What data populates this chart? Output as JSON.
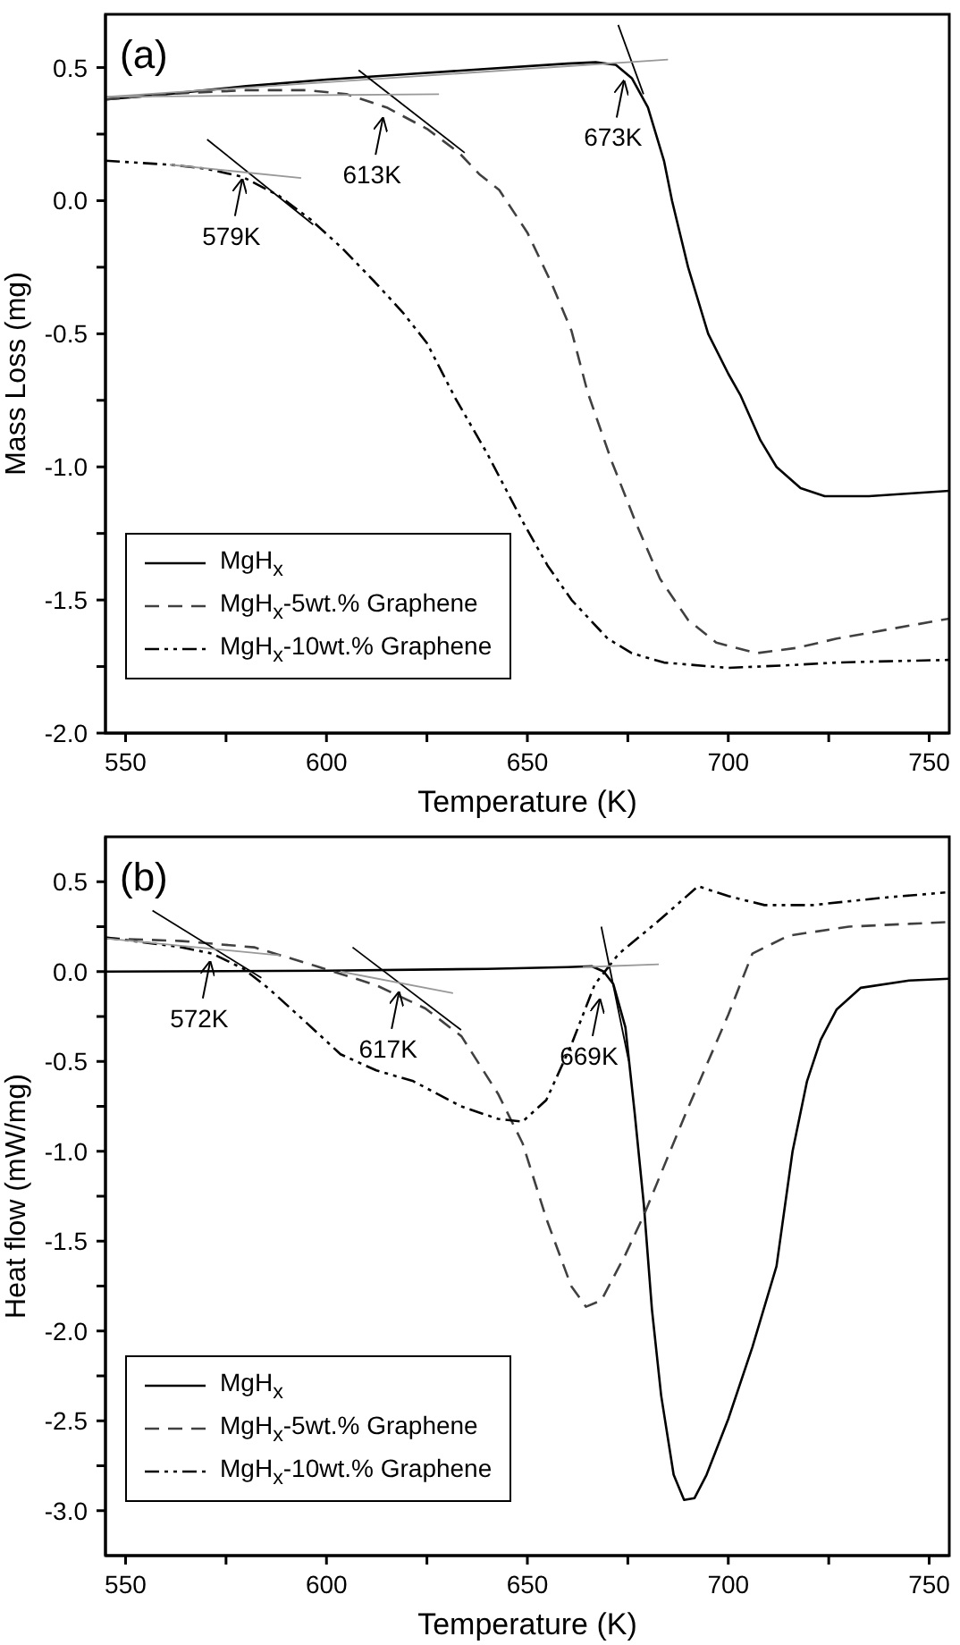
{
  "chart_data": [
    {
      "type": "line",
      "xlabel": "Temperature (K)",
      "ylabel": "Mass Loss (mg)",
      "xlim": [
        545,
        755
      ],
      "ylim": [
        -2.0,
        0.7
      ],
      "xticks": [
        550,
        {
          "value": 575,
          "label": null
        },
        600,
        {
          "value": 625,
          "label": null
        },
        650,
        {
          "value": 675,
          "label": null
        },
        700,
        {
          "value": 725,
          "label": null
        },
        750
      ],
      "yticks": [
        {
          "value": -2.0,
          "label": "-2.0"
        },
        {
          "value": -1.75,
          "label": null
        },
        -1.5,
        {
          "value": -1.25,
          "label": null
        },
        {
          "value": -1.0,
          "label": "-1.0"
        },
        {
          "value": -0.75,
          "label": null
        },
        -0.5,
        {
          "value": -0.25,
          "label": null
        },
        {
          "value": 0,
          "label": "0.0"
        },
        {
          "value": 0.25,
          "label": null
        },
        0.5
      ],
      "legend": "bottom left",
      "marker": "none",
      "grid": false,
      "annotations": [
        "(a)",
        {
          "text": "579K",
          "x": 579,
          "y": 0.09
        },
        {
          "text": "613K",
          "x": 614,
          "y": 0.32
        },
        {
          "text": "673K",
          "x": 674,
          "y": 0.46
        }
      ],
      "series": [
        {
          "name": "MgH$_{x}$",
          "color": "#000000",
          "line_style": "solid",
          "x": [
            545,
            560,
            580,
            600,
            620,
            640,
            660,
            667,
            672,
            676,
            680,
            684,
            686,
            690,
            695,
            700,
            703,
            708,
            712,
            718,
            724,
            735,
            745,
            755
          ],
          "values": [
            0.38,
            0.4,
            0.43,
            0.455,
            0.475,
            0.495,
            0.515,
            0.52,
            0.51,
            0.46,
            0.35,
            0.15,
            0.0,
            -0.25,
            -0.5,
            -0.65,
            -0.73,
            -0.9,
            -1.0,
            -1.08,
            -1.11,
            -1.11,
            -1.1,
            -1.09
          ]
        },
        {
          "name": "MgH$_{x}$-5wt.% Graphene",
          "color": "#404040",
          "line_style": "dashed",
          "x": [
            545,
            560,
            580,
            595,
            605,
            615,
            625,
            633,
            638,
            643,
            650,
            656,
            661,
            665,
            671,
            677,
            683,
            690,
            697,
            707,
            717,
            727,
            740,
            755
          ],
          "values": [
            0.38,
            0.4,
            0.415,
            0.415,
            0.4,
            0.35,
            0.27,
            0.18,
            0.1,
            0.04,
            -0.12,
            -0.31,
            -0.49,
            -0.72,
            -0.98,
            -1.21,
            -1.42,
            -1.575,
            -1.66,
            -1.7,
            -1.68,
            -1.645,
            -1.61,
            -1.57
          ]
        },
        {
          "name": "MgH$_{x}$-10wt.% Graphene",
          "color": "#000000",
          "line_style": "dashdot",
          "x": [
            545,
            561,
            570,
            579,
            588,
            596,
            604,
            612,
            619,
            625,
            632,
            640,
            649,
            655,
            661,
            670,
            676,
            684,
            700,
            715,
            727,
            740,
            755
          ],
          "values": [
            0.15,
            0.135,
            0.12,
            0.09,
            0.02,
            -0.07,
            -0.18,
            -0.305,
            -0.42,
            -0.535,
            -0.74,
            -0.95,
            -1.21,
            -1.37,
            -1.5,
            -1.645,
            -1.7,
            -1.735,
            -1.755,
            -1.745,
            -1.735,
            -1.73,
            -1.725
          ]
        },
        {
          "type": "line",
          "color": "#000000",
          "line_style": "solid",
          "x": [
            672.6,
            678.9
          ],
          "values": [
            0.66,
            0.4
          ]
        },
        {
          "type": "line",
          "color": "#999999",
          "line_style": "solid",
          "x": [
            545,
            685
          ],
          "values": [
            0.39,
            0.53
          ]
        },
        {
          "type": "line",
          "color": "#000000",
          "line_style": "solid",
          "x": [
            608,
            634.4
          ],
          "values": [
            0.49,
            0.18
          ]
        },
        {
          "type": "line",
          "color": "#999999",
          "line_style": "solid",
          "x": [
            545,
            628
          ],
          "values": [
            0.39,
            0.4
          ]
        },
        {
          "type": "line",
          "color": "#000000",
          "line_style": "solid",
          "x": [
            570.3,
            596.7
          ],
          "values": [
            0.23,
            -0.09
          ]
        },
        {
          "type": "line",
          "color": "#999999",
          "line_style": "solid",
          "x": [
            561,
            593.7
          ],
          "values": [
            0.135,
            0.085
          ]
        }
      ]
    },
    {
      "type": "line",
      "xlabel": "Temperature (K)",
      "ylabel": "Heat flow (mW/mg)",
      "xlim": [
        545,
        755
      ],
      "ylim": [
        -3.25,
        0.75
      ],
      "xticks": [
        550,
        {
          "value": 575,
          "label": null
        },
        600,
        {
          "value": 625,
          "label": null
        },
        650,
        {
          "value": 675,
          "label": null
        },
        700,
        {
          "value": 725,
          "label": null
        },
        750
      ],
      "yticks": [
        {
          "value": -3.0,
          "label": "-3.0"
        },
        {
          "value": -2.75,
          "label": null
        },
        -2.5,
        {
          "value": -2.25,
          "label": null
        },
        {
          "value": -2.0,
          "label": "-2.0"
        },
        {
          "value": -1.75,
          "label": null
        },
        -1.5,
        {
          "value": -1.25,
          "label": null
        },
        {
          "value": -1.0,
          "label": "-1.0"
        },
        {
          "value": -0.75,
          "label": null
        },
        -0.5,
        {
          "value": -0.25,
          "label": null
        },
        {
          "value": 0,
          "label": "0.0"
        },
        {
          "value": 0.25,
          "label": null
        },
        0.5
      ],
      "legend": "bottom left",
      "marker": "none",
      "grid": false,
      "annotations": [
        "(b)",
        {
          "text": "572K",
          "x": 571,
          "y": 0.07
        },
        {
          "text": "617K",
          "x": 618,
          "y": -0.1
        },
        {
          "text": "669K",
          "x": 668,
          "y": -0.14
        }
      ],
      "series": [
        {
          "name": "MgH$_{x}$",
          "color": "#000000",
          "line_style": "solid",
          "x": [
            545,
            600,
            640,
            660,
            666,
            669,
            671.4,
            674.4,
            676.7,
            679,
            681,
            683.3,
            686.4,
            689,
            691.6,
            694.6,
            700,
            706,
            712,
            716,
            719.6,
            723,
            727,
            733,
            745,
            755
          ],
          "values": [
            0,
            0.005,
            0.015,
            0.025,
            0.03,
            0.0,
            -0.07,
            -0.31,
            -0.785,
            -1.3,
            -1.88,
            -2.36,
            -2.8,
            -2.94,
            -2.93,
            -2.8,
            -2.49,
            -2.09,
            -1.64,
            -1.0,
            -0.61,
            -0.38,
            -0.21,
            -0.09,
            -0.05,
            -0.04
          ]
        },
        {
          "name": "MgH$_{x}$-5wt.% Graphene",
          "color": "#404040",
          "line_style": "dashed",
          "x": [
            545,
            564,
            582,
            597.5,
            612.5,
            624.6,
            633.6,
            642.7,
            648.8,
            654.8,
            660.9,
            664.6,
            668.4,
            674.4,
            678.9,
            689.5,
            700,
            706,
            715,
            730,
            754
          ],
          "values": [
            0.185,
            0.17,
            0.135,
            0.03,
            -0.077,
            -0.205,
            -0.36,
            -0.68,
            -0.955,
            -1.38,
            -1.75,
            -1.865,
            -1.83,
            -1.575,
            -1.36,
            -0.785,
            -0.24,
            0.1,
            0.2,
            0.25,
            0.275
          ]
        },
        {
          "name": "MgH$_{x}$-10wt.% Graphene",
          "color": "#000000",
          "line_style": "dashdot",
          "x": [
            545,
            564,
            571.6,
            579.4,
            585.4,
            594.3,
            603.5,
            612.4,
            621.6,
            633.5,
            642.7,
            648.8,
            654.7,
            660.9,
            666.8,
            672.8,
            682,
            692.5,
            700,
            709,
            721,
            738,
            754
          ],
          "values": [
            0.19,
            0.135,
            0.1,
            0.015,
            -0.09,
            -0.27,
            -0.46,
            -0.55,
            -0.61,
            -0.75,
            -0.82,
            -0.835,
            -0.715,
            -0.41,
            -0.07,
            0.1,
            0.27,
            0.475,
            0.42,
            0.37,
            0.37,
            0.41,
            0.44
          ]
        },
        {
          "type": "line",
          "color": "#000000",
          "line_style": "solid",
          "x": [
            556.7,
            583.8
          ],
          "values": [
            0.34,
            -0.035
          ]
        },
        {
          "type": "line",
          "color": "#999999",
          "line_style": "solid",
          "x": [
            545,
            588.4
          ],
          "values": [
            0.185,
            0.09
          ]
        },
        {
          "type": "line",
          "color": "#000000",
          "line_style": "solid",
          "x": [
            606.5,
            633.5
          ],
          "values": [
            0.135,
            -0.325
          ]
        },
        {
          "type": "line",
          "color": "#999999",
          "line_style": "solid",
          "x": [
            603.5,
            631.5
          ],
          "values": [
            0.0,
            -0.12
          ]
        },
        {
          "type": "line",
          "color": "#000000",
          "line_style": "solid",
          "x": [
            668.4,
            675.2
          ],
          "values": [
            0.25,
            -0.495
          ]
        },
        {
          "type": "line",
          "color": "#999999",
          "line_style": "solid",
          "x": [
            663.8,
            682.7
          ],
          "values": [
            0.025,
            0.04
          ]
        }
      ]
    }
  ]
}
